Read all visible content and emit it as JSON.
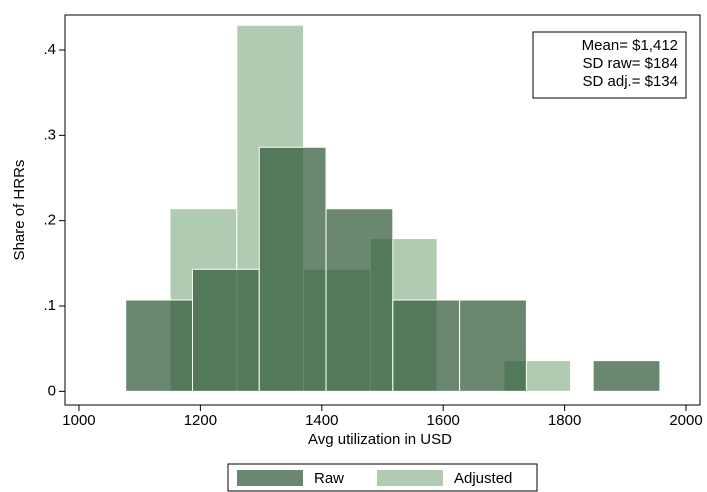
{
  "chart_data": {
    "type": "histogram",
    "xlabel": "Avg utilization in USD",
    "ylabel": "Share of HRRs",
    "annotations": [
      "Mean= $1,412",
      "SD raw= $184",
      "SD adj.= $134"
    ],
    "series": [
      {
        "name": "Raw",
        "color": "#2f5a38",
        "opacity": 0.72,
        "bins": [
          1077,
          1187,
          1297,
          1407,
          1517,
          1627,
          1737,
          1847,
          1957
        ],
        "values": [
          0.107,
          0.143,
          0.286,
          0.214,
          0.107,
          0.107,
          0,
          0.036
        ]
      },
      {
        "name": "Adjusted",
        "color": "#9dbd9f",
        "opacity": 0.8,
        "bins": [
          1150,
          1260,
          1370,
          1480,
          1590,
          1700,
          1810
        ],
        "values": [
          0.214,
          0.429,
          0.143,
          0.179,
          0,
          0.036
        ]
      }
    ],
    "xlim": [
      977,
      2023
    ],
    "ylim": [
      -0.016,
      0.441
    ],
    "xticks": [
      1000,
      1200,
      1400,
      1600,
      1800,
      2000
    ],
    "yticks": [
      0,
      {
        "value": 0.1,
        "label": ".1"
      },
      {
        "value": 0.2,
        "label": ".2"
      },
      {
        "value": 0.3,
        "label": ".3"
      },
      {
        "value": 0.4,
        "label": ".4"
      }
    ],
    "legend": "bottom"
  }
}
